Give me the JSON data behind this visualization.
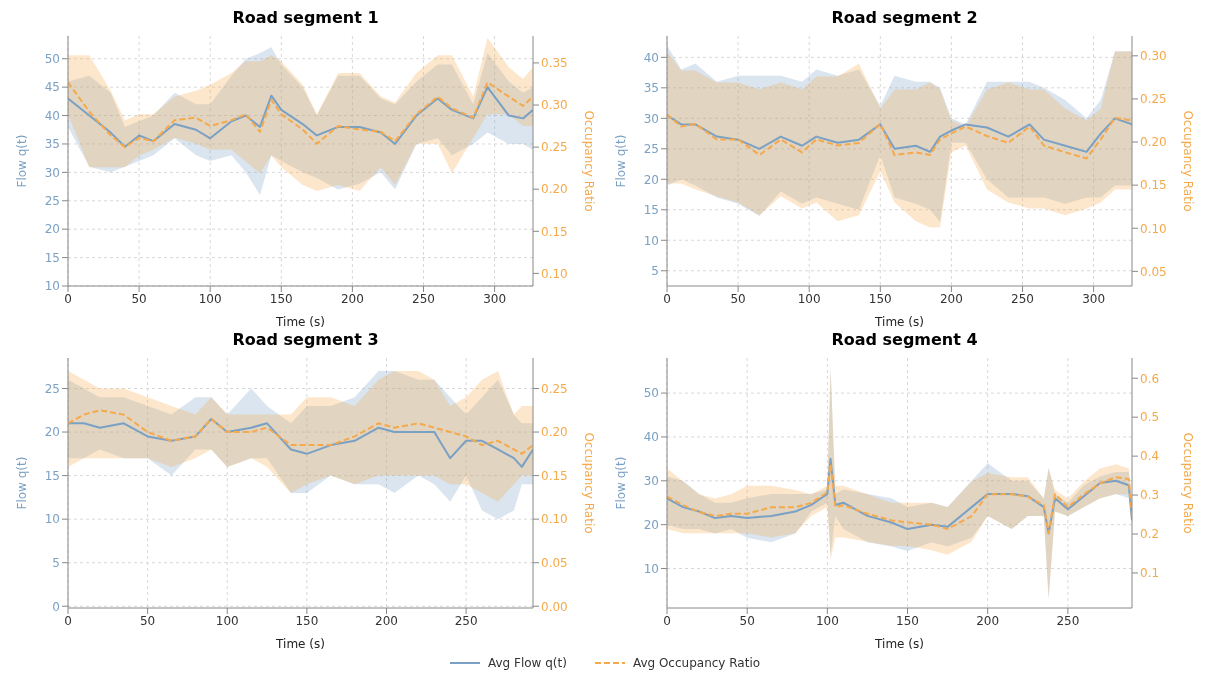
{
  "chart_data": [
    {
      "type": "line",
      "title": "Road segment 1",
      "xlabel": "Time (s)",
      "ylabel": "Flow q(t)",
      "y2label": "Occupancy Ratio",
      "grid": true,
      "legend": "bottom",
      "xlim": [
        0,
        327
      ],
      "xticks": [
        0,
        50,
        100,
        150,
        200,
        250,
        300
      ],
      "ylim": [
        10,
        54
      ],
      "yticks": [
        10,
        15,
        20,
        25,
        30,
        35,
        40,
        45,
        50
      ],
      "y2lim": [
        0.085,
        0.382
      ],
      "y2ticks": [
        {
          "value": 0.1,
          "label": "0.10"
        },
        {
          "value": 0.15,
          "label": "0.15"
        },
        {
          "value": 0.2,
          "label": "0.20"
        },
        {
          "value": 0.25,
          "label": "0.25"
        },
        {
          "value": 0.3,
          "label": "0.30"
        },
        {
          "value": 0.35,
          "label": "0.35"
        }
      ],
      "x": [
        0,
        15,
        30,
        40,
        50,
        60,
        75,
        90,
        100,
        115,
        125,
        135,
        143,
        150,
        165,
        175,
        190,
        205,
        220,
        230,
        245,
        260,
        270,
        285,
        295,
        310,
        320,
        327
      ],
      "series": [
        {
          "name": "Avg Flow q(t)",
          "color": "#7aa0c4",
          "line_style": "solid",
          "values": [
            43,
            40,
            37,
            34.5,
            36.5,
            35.5,
            38.5,
            37.5,
            36,
            39,
            40,
            38,
            43.5,
            41,
            38.5,
            36.5,
            38,
            38,
            37,
            35,
            40,
            43,
            41,
            39.5,
            45,
            40,
            39.5,
            41
          ],
          "lower": [
            38,
            31,
            30,
            31,
            32,
            33,
            36,
            33,
            32,
            33,
            30,
            26,
            33,
            32,
            30,
            29,
            27,
            28,
            30,
            27,
            35,
            36,
            33,
            35,
            37,
            35,
            35,
            34
          ],
          "upper": [
            46,
            47,
            44,
            38,
            39,
            40,
            44,
            42,
            42,
            47,
            50,
            51,
            52,
            49,
            45,
            40,
            47,
            47,
            43,
            42,
            46,
            49,
            49,
            42,
            51,
            46,
            44,
            45
          ]
        },
        {
          "name": "Avg Occupancy Ratio",
          "color": "#f5a94b",
          "line_style": "dashed",
          "axis": "y2",
          "values": [
            0.327,
            0.292,
            0.264,
            0.25,
            0.261,
            0.257,
            0.282,
            0.285,
            0.275,
            0.282,
            0.289,
            0.268,
            0.306,
            0.289,
            0.271,
            0.254,
            0.275,
            0.271,
            0.268,
            0.257,
            0.289,
            0.31,
            0.296,
            0.285,
            0.327,
            0.31,
            0.299,
            0.31
          ],
          "lower": [
            0.289,
            0.226,
            0.226,
            0.226,
            0.24,
            0.247,
            0.261,
            0.254,
            0.247,
            0.247,
            0.233,
            0.219,
            0.24,
            0.226,
            0.205,
            0.198,
            0.205,
            0.198,
            0.226,
            0.205,
            0.254,
            0.254,
            0.219,
            0.261,
            0.289,
            0.289,
            0.275,
            0.275
          ],
          "upper": [
            0.359,
            0.359,
            0.317,
            0.282,
            0.289,
            0.289,
            0.31,
            0.317,
            0.324,
            0.338,
            0.352,
            0.352,
            0.359,
            0.352,
            0.324,
            0.289,
            0.338,
            0.338,
            0.31,
            0.303,
            0.338,
            0.359,
            0.359,
            0.31,
            0.38,
            0.345,
            0.331,
            0.345
          ]
        }
      ]
    },
    {
      "type": "line",
      "title": "Road segment 2",
      "xlabel": "Time (s)",
      "ylabel": "Flow q(t)",
      "y2label": "Occupancy Ratio",
      "grid": true,
      "xlim": [
        0,
        327
      ],
      "xticks": [
        0,
        50,
        100,
        150,
        200,
        250,
        300
      ],
      "ylim": [
        2.5,
        43.5
      ],
      "yticks": [
        5,
        10,
        15,
        20,
        25,
        30,
        35,
        40
      ],
      "y2lim": [
        0.033,
        0.323
      ],
      "y2ticks": [
        {
          "value": 0.05,
          "label": "0.05"
        },
        {
          "value": 0.1,
          "label": "0.10"
        },
        {
          "value": 0.15,
          "label": "0.15"
        },
        {
          "value": 0.2,
          "label": "0.20"
        },
        {
          "value": 0.25,
          "label": "0.25"
        },
        {
          "value": 0.3,
          "label": "0.30"
        }
      ],
      "x": [
        0,
        10,
        20,
        35,
        50,
        65,
        80,
        95,
        105,
        120,
        135,
        150,
        160,
        175,
        185,
        192,
        200,
        210,
        225,
        240,
        255,
        265,
        280,
        295,
        305,
        315,
        327
      ],
      "series": [
        {
          "color": "#7aa0c4",
          "line_style": "solid",
          "values": [
            30.5,
            29,
            29,
            27,
            26.5,
            25,
            27,
            25.5,
            27,
            26,
            26.5,
            29,
            25,
            25.5,
            24.5,
            27,
            28,
            29,
            28.5,
            27,
            29,
            26.5,
            25.5,
            24.5,
            27.5,
            30,
            29
          ],
          "lower": [
            19,
            20,
            19,
            17,
            16,
            14,
            18,
            16,
            17,
            16,
            15,
            24,
            17,
            16,
            15,
            13,
            26,
            26,
            20,
            17,
            17,
            17,
            16,
            17,
            17,
            19,
            19
          ],
          "upper": [
            42,
            38,
            39,
            36,
            37,
            37,
            37,
            36,
            38,
            37,
            38,
            32,
            37,
            36,
            36,
            35,
            30,
            29,
            36,
            36,
            36,
            35,
            33,
            30,
            33,
            41,
            41
          ]
        },
        {
          "color": "#f5a94b",
          "line_style": "dashed",
          "axis": "y2",
          "values": [
            0.232,
            0.218,
            0.221,
            0.203,
            0.203,
            0.185,
            0.203,
            0.188,
            0.203,
            0.196,
            0.199,
            0.221,
            0.185,
            0.188,
            0.185,
            0.203,
            0.21,
            0.218,
            0.207,
            0.199,
            0.218,
            0.196,
            0.188,
            0.181,
            0.203,
            0.228,
            0.225
          ],
          "lower": [
            0.152,
            0.152,
            0.145,
            0.137,
            0.13,
            0.115,
            0.137,
            0.123,
            0.13,
            0.108,
            0.115,
            0.166,
            0.13,
            0.108,
            0.101,
            0.101,
            0.188,
            0.196,
            0.145,
            0.13,
            0.123,
            0.123,
            0.115,
            0.123,
            0.13,
            0.145,
            0.145
          ],
          "upper": [
            0.305,
            0.283,
            0.283,
            0.269,
            0.269,
            0.261,
            0.269,
            0.261,
            0.276,
            0.276,
            0.291,
            0.239,
            0.261,
            0.261,
            0.269,
            0.261,
            0.225,
            0.218,
            0.261,
            0.269,
            0.261,
            0.261,
            0.239,
            0.225,
            0.239,
            0.305,
            0.305
          ]
        }
      ]
    },
    {
      "type": "line",
      "title": "Road segment 3",
      "xlabel": "Time (s)",
      "ylabel": "Flow q(t)",
      "y2label": "Occupancy Ratio",
      "grid": true,
      "xlim": [
        0,
        292
      ],
      "xticks": [
        0,
        50,
        100,
        150,
        200,
        250
      ],
      "ylim": [
        -0.2,
        28.5
      ],
      "yticks": [
        0,
        5,
        10,
        15,
        20,
        25
      ],
      "y2lim": [
        -0.002,
        0.285
      ],
      "y2ticks": [
        {
          "value": 0,
          "label": "0.00"
        },
        {
          "value": 0.05,
          "label": "0.05"
        },
        {
          "value": 0.1,
          "label": "0.10"
        },
        {
          "value": 0.15,
          "label": "0.15"
        },
        {
          "value": 0.2,
          "label": "0.20"
        },
        {
          "value": 0.25,
          "label": "0.25"
        }
      ],
      "x": [
        0,
        10,
        20,
        35,
        50,
        65,
        80,
        90,
        100,
        115,
        125,
        140,
        150,
        165,
        180,
        195,
        205,
        220,
        230,
        240,
        250,
        260,
        270,
        280,
        285,
        292
      ],
      "series": [
        {
          "color": "#7aa0c4",
          "line_style": "solid",
          "values": [
            21,
            21,
            20.5,
            21,
            19.5,
            19,
            19.5,
            21.5,
            20,
            20.5,
            21,
            18,
            17.5,
            18.5,
            19,
            20.5,
            20,
            20,
            20,
            17,
            19,
            19,
            18,
            17,
            16,
            18
          ],
          "lower": [
            17,
            17,
            18,
            17,
            17,
            15,
            18,
            18,
            16,
            17,
            17,
            13,
            13,
            15,
            14,
            14,
            13,
            15,
            14,
            12,
            15,
            11,
            10,
            11,
            14,
            14
          ],
          "upper": [
            26,
            25,
            24,
            24,
            23,
            22,
            24,
            24,
            22,
            25,
            23,
            21,
            23,
            23,
            24,
            27,
            27,
            26,
            26,
            24,
            22,
            24,
            26,
            22,
            21,
            21
          ]
        },
        {
          "color": "#f5a94b",
          "line_style": "dashed",
          "axis": "y2",
          "values": [
            0.21,
            0.22,
            0.225,
            0.22,
            0.2,
            0.19,
            0.195,
            0.215,
            0.2,
            0.2,
            0.205,
            0.185,
            0.185,
            0.185,
            0.195,
            0.21,
            0.205,
            0.21,
            0.205,
            0.2,
            0.195,
            0.185,
            0.19,
            0.18,
            0.175,
            0.185
          ],
          "lower": [
            0.16,
            0.17,
            0.17,
            0.17,
            0.17,
            0.16,
            0.17,
            0.18,
            0.16,
            0.17,
            0.16,
            0.13,
            0.14,
            0.15,
            0.14,
            0.15,
            0.15,
            0.15,
            0.15,
            0.14,
            0.14,
            0.13,
            0.12,
            0.14,
            0.15,
            0.15
          ],
          "upper": [
            0.27,
            0.26,
            0.25,
            0.25,
            0.24,
            0.23,
            0.22,
            0.24,
            0.22,
            0.22,
            0.22,
            0.22,
            0.24,
            0.24,
            0.23,
            0.26,
            0.27,
            0.27,
            0.26,
            0.23,
            0.24,
            0.26,
            0.27,
            0.22,
            0.23,
            0.23
          ]
        }
      ]
    },
    {
      "type": "line",
      "title": "Road segment 4",
      "xlabel": "Time (s)",
      "ylabel": "Flow q(t)",
      "y2label": "Occupancy Ratio",
      "grid": true,
      "xlim": [
        0,
        290
      ],
      "xticks": [
        0,
        50,
        100,
        150,
        200,
        250
      ],
      "ylim": [
        1,
        58
      ],
      "yticks": [
        10,
        20,
        30,
        40,
        50
      ],
      "y2lim": [
        0.01,
        0.652
      ],
      "y2ticks": [
        0.1,
        0.2,
        0.3,
        0.4,
        0.5,
        0.6
      ],
      "x": [
        0,
        10,
        20,
        30,
        40,
        50,
        65,
        80,
        90,
        100,
        102,
        105,
        110,
        125,
        140,
        150,
        165,
        175,
        190,
        200,
        215,
        225,
        235,
        238,
        242,
        250,
        260,
        270,
        280,
        288,
        290
      ],
      "series": [
        {
          "color": "#7aa0c4",
          "line_style": "solid",
          "values": [
            26,
            24,
            23,
            21.5,
            22,
            21.5,
            22,
            23,
            24.5,
            27,
            35,
            24.5,
            25,
            22,
            20.5,
            19,
            20,
            19.5,
            24,
            27,
            27,
            26.5,
            24,
            18,
            26,
            23.5,
            26.5,
            29.5,
            30,
            29,
            21
          ],
          "lower": [
            20,
            19,
            19,
            18,
            19,
            17,
            16,
            18,
            23,
            25,
            13,
            22,
            19,
            16,
            15,
            14,
            16,
            15,
            17,
            22,
            19,
            22,
            22,
            3,
            23,
            22,
            24,
            26,
            27,
            26,
            20
          ],
          "upper": [
            31,
            30,
            27,
            25,
            25,
            26,
            27,
            27,
            27,
            28,
            56,
            27,
            28,
            27,
            26,
            24,
            25,
            24,
            30,
            34,
            30,
            30,
            26,
            33,
            27,
            25,
            29,
            31,
            32,
            32,
            25
          ]
        },
        {
          "color": "#f5a94b",
          "line_style": "dashed",
          "axis": "y2",
          "values": [
            0.296,
            0.274,
            0.257,
            0.246,
            0.252,
            0.252,
            0.269,
            0.269,
            0.28,
            0.307,
            0.379,
            0.269,
            0.274,
            0.252,
            0.235,
            0.23,
            0.224,
            0.213,
            0.246,
            0.302,
            0.302,
            0.296,
            0.274,
            0.202,
            0.302,
            0.269,
            0.302,
            0.33,
            0.346,
            0.341,
            0.246
          ],
          "lower": [
            0.213,
            0.202,
            0.202,
            0.202,
            0.202,
            0.202,
            0.191,
            0.202,
            0.246,
            0.269,
            0.135,
            0.191,
            0.191,
            0.18,
            0.169,
            0.169,
            0.158,
            0.147,
            0.18,
            0.246,
            0.213,
            0.246,
            0.246,
            0.036,
            0.257,
            0.246,
            0.269,
            0.291,
            0.302,
            0.302,
            0.224
          ],
          "upper": [
            0.368,
            0.335,
            0.302,
            0.291,
            0.302,
            0.324,
            0.324,
            0.313,
            0.302,
            0.324,
            0.623,
            0.324,
            0.324,
            0.302,
            0.28,
            0.28,
            0.28,
            0.269,
            0.335,
            0.357,
            0.346,
            0.346,
            0.291,
            0.368,
            0.313,
            0.291,
            0.335,
            0.368,
            0.379,
            0.368,
            0.291
          ]
        }
      ]
    }
  ]
}
